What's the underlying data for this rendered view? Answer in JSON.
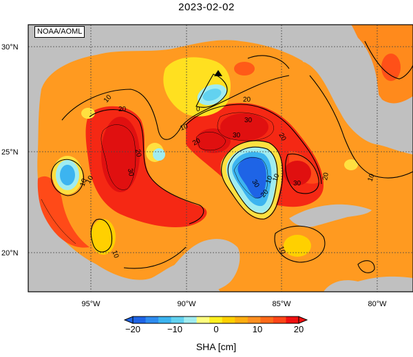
{
  "title": "2023-02-02",
  "credit": "NOAA/AOML",
  "lat_labels": [
    "30°N",
    "25°N",
    "20°N"
  ],
  "lon_labels": [
    "95°W",
    "90°W",
    "85°W",
    "80°W"
  ],
  "contour_labels": [
    "10",
    "20",
    "0",
    "10",
    "10",
    "20",
    "30",
    "20",
    "30",
    "20",
    "10",
    "30",
    "10",
    "20",
    "10",
    "10",
    "20",
    "30",
    "10",
    "30",
    "20",
    "10"
  ],
  "colorbar": {
    "ticks": [
      "−20",
      "−10",
      "0",
      "10",
      "20"
    ],
    "title": "SHA [cm]",
    "colors": [
      "#1e64e6",
      "#2e8cf0",
      "#3cb4f0",
      "#62d2f0",
      "#a0ecf0",
      "#ffff80",
      "#fff020",
      "#ffd000",
      "#ffae10",
      "#ff9020",
      "#ff6a18",
      "#ff4618",
      "#f01010"
    ]
  },
  "colors": {
    "land": "#c0c0c0",
    "warm": "#ff8c1e",
    "hot": "#ff2a14",
    "cold": "#1e64e6"
  }
}
